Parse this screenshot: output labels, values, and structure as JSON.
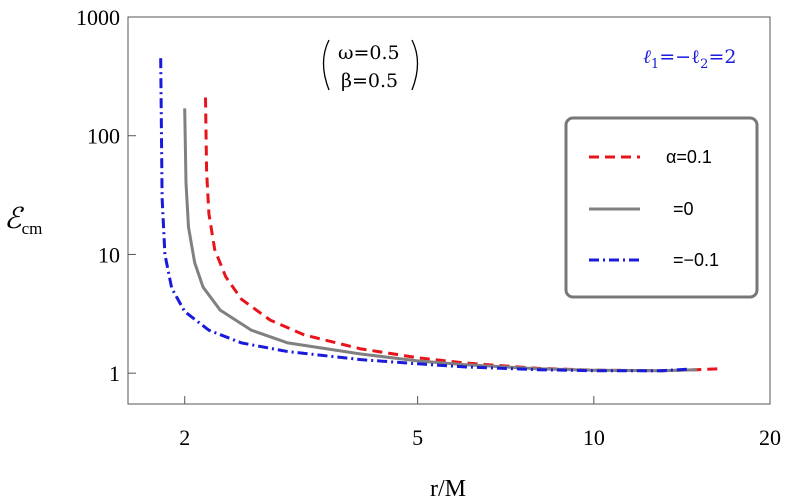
{
  "chart_data": {
    "type": "line",
    "xlabel": "r/M",
    "ylabel": "ℰ",
    "ylabel_sub": "cm",
    "x_scale": "log",
    "y_scale": "log",
    "xlim": [
      1.6,
      20
    ],
    "ylim": [
      0.55,
      1000
    ],
    "x_ticks": [
      {
        "value": 2,
        "label": "2"
      },
      {
        "value": 5,
        "label": "5"
      },
      {
        "value": 10,
        "label": "10"
      },
      {
        "value": 20,
        "label": "20"
      }
    ],
    "y_ticks": [
      {
        "value": 1,
        "label": "1"
      },
      {
        "value": 10,
        "label": "10"
      },
      {
        "value": 100,
        "label": "100"
      },
      {
        "value": 1000,
        "label": "1000"
      }
    ],
    "annotations": {
      "omega": "ω=0.5",
      "beta": "β=0.5",
      "ell_prefix": "ℓ",
      "ell_sub1": "1",
      "ell_mid": "=−ℓ",
      "ell_sub2": "2",
      "ell_suffix": "=2"
    },
    "series": [
      {
        "name": "α=0.1",
        "color": "#e8141b",
        "dash": "dashed",
        "x": [
          2.17,
          2.18,
          2.2,
          2.25,
          2.35,
          2.5,
          2.8,
          3.2,
          4,
          5,
          6,
          8,
          10,
          13,
          15,
          16.5
        ],
        "y": [
          210,
          50,
          22,
          11,
          6.5,
          4.2,
          2.8,
          2.1,
          1.6,
          1.35,
          1.22,
          1.1,
          1.06,
          1.05,
          1.07,
          1.09
        ]
      },
      {
        "name": "=0",
        "color": "#808080",
        "dash": "solid",
        "x": [
          2.0,
          2.01,
          2.03,
          2.08,
          2.15,
          2.3,
          2.6,
          3,
          4,
          5,
          6,
          8,
          10,
          13,
          15
        ],
        "y": [
          170,
          40,
          17,
          8.5,
          5.3,
          3.4,
          2.3,
          1.8,
          1.45,
          1.27,
          1.18,
          1.09,
          1.06,
          1.05,
          1.07
        ]
      },
      {
        "name": "=−0.1",
        "color": "#1a1adc",
        "dash": "dashdot",
        "x": [
          1.82,
          1.83,
          1.85,
          1.9,
          2.0,
          2.2,
          2.5,
          3,
          4,
          5,
          6,
          8,
          10,
          13,
          14.5
        ],
        "y": [
          450,
          30,
          10,
          5.2,
          3.3,
          2.3,
          1.8,
          1.52,
          1.3,
          1.2,
          1.13,
          1.07,
          1.05,
          1.05,
          1.08
        ]
      }
    ]
  }
}
